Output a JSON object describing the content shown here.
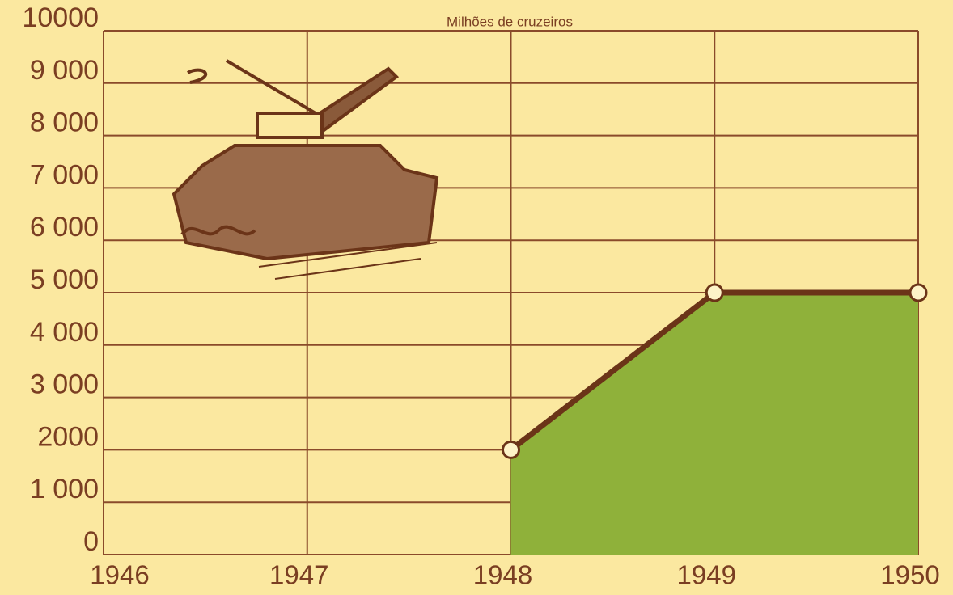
{
  "chart_data": {
    "type": "area",
    "title": "Milhões de cruzeiros",
    "x": [
      1948,
      1949,
      1950
    ],
    "values": [
      2000,
      5000,
      5000
    ],
    "color": "#8fb13a",
    "line_color": "#6b3418",
    "xlim": [
      1946,
      1950
    ],
    "xticks": [
      1946,
      1947,
      1948,
      1949,
      1950
    ],
    "ylim": [
      0,
      10000
    ],
    "yticks": [
      0,
      {
        "value": 1000,
        "label": "1 000"
      },
      2000,
      {
        "value": 3000,
        "label": "3 000"
      },
      {
        "value": 4000,
        "label": "4 000"
      },
      {
        "value": 5000,
        "label": "5 000"
      },
      {
        "value": 6000,
        "label": "6 000"
      },
      {
        "value": 7000,
        "label": "7 000"
      },
      {
        "value": 8000,
        "label": "8 000"
      },
      {
        "value": 9000,
        "label": "9 000"
      },
      10000
    ],
    "grid": true
  }
}
